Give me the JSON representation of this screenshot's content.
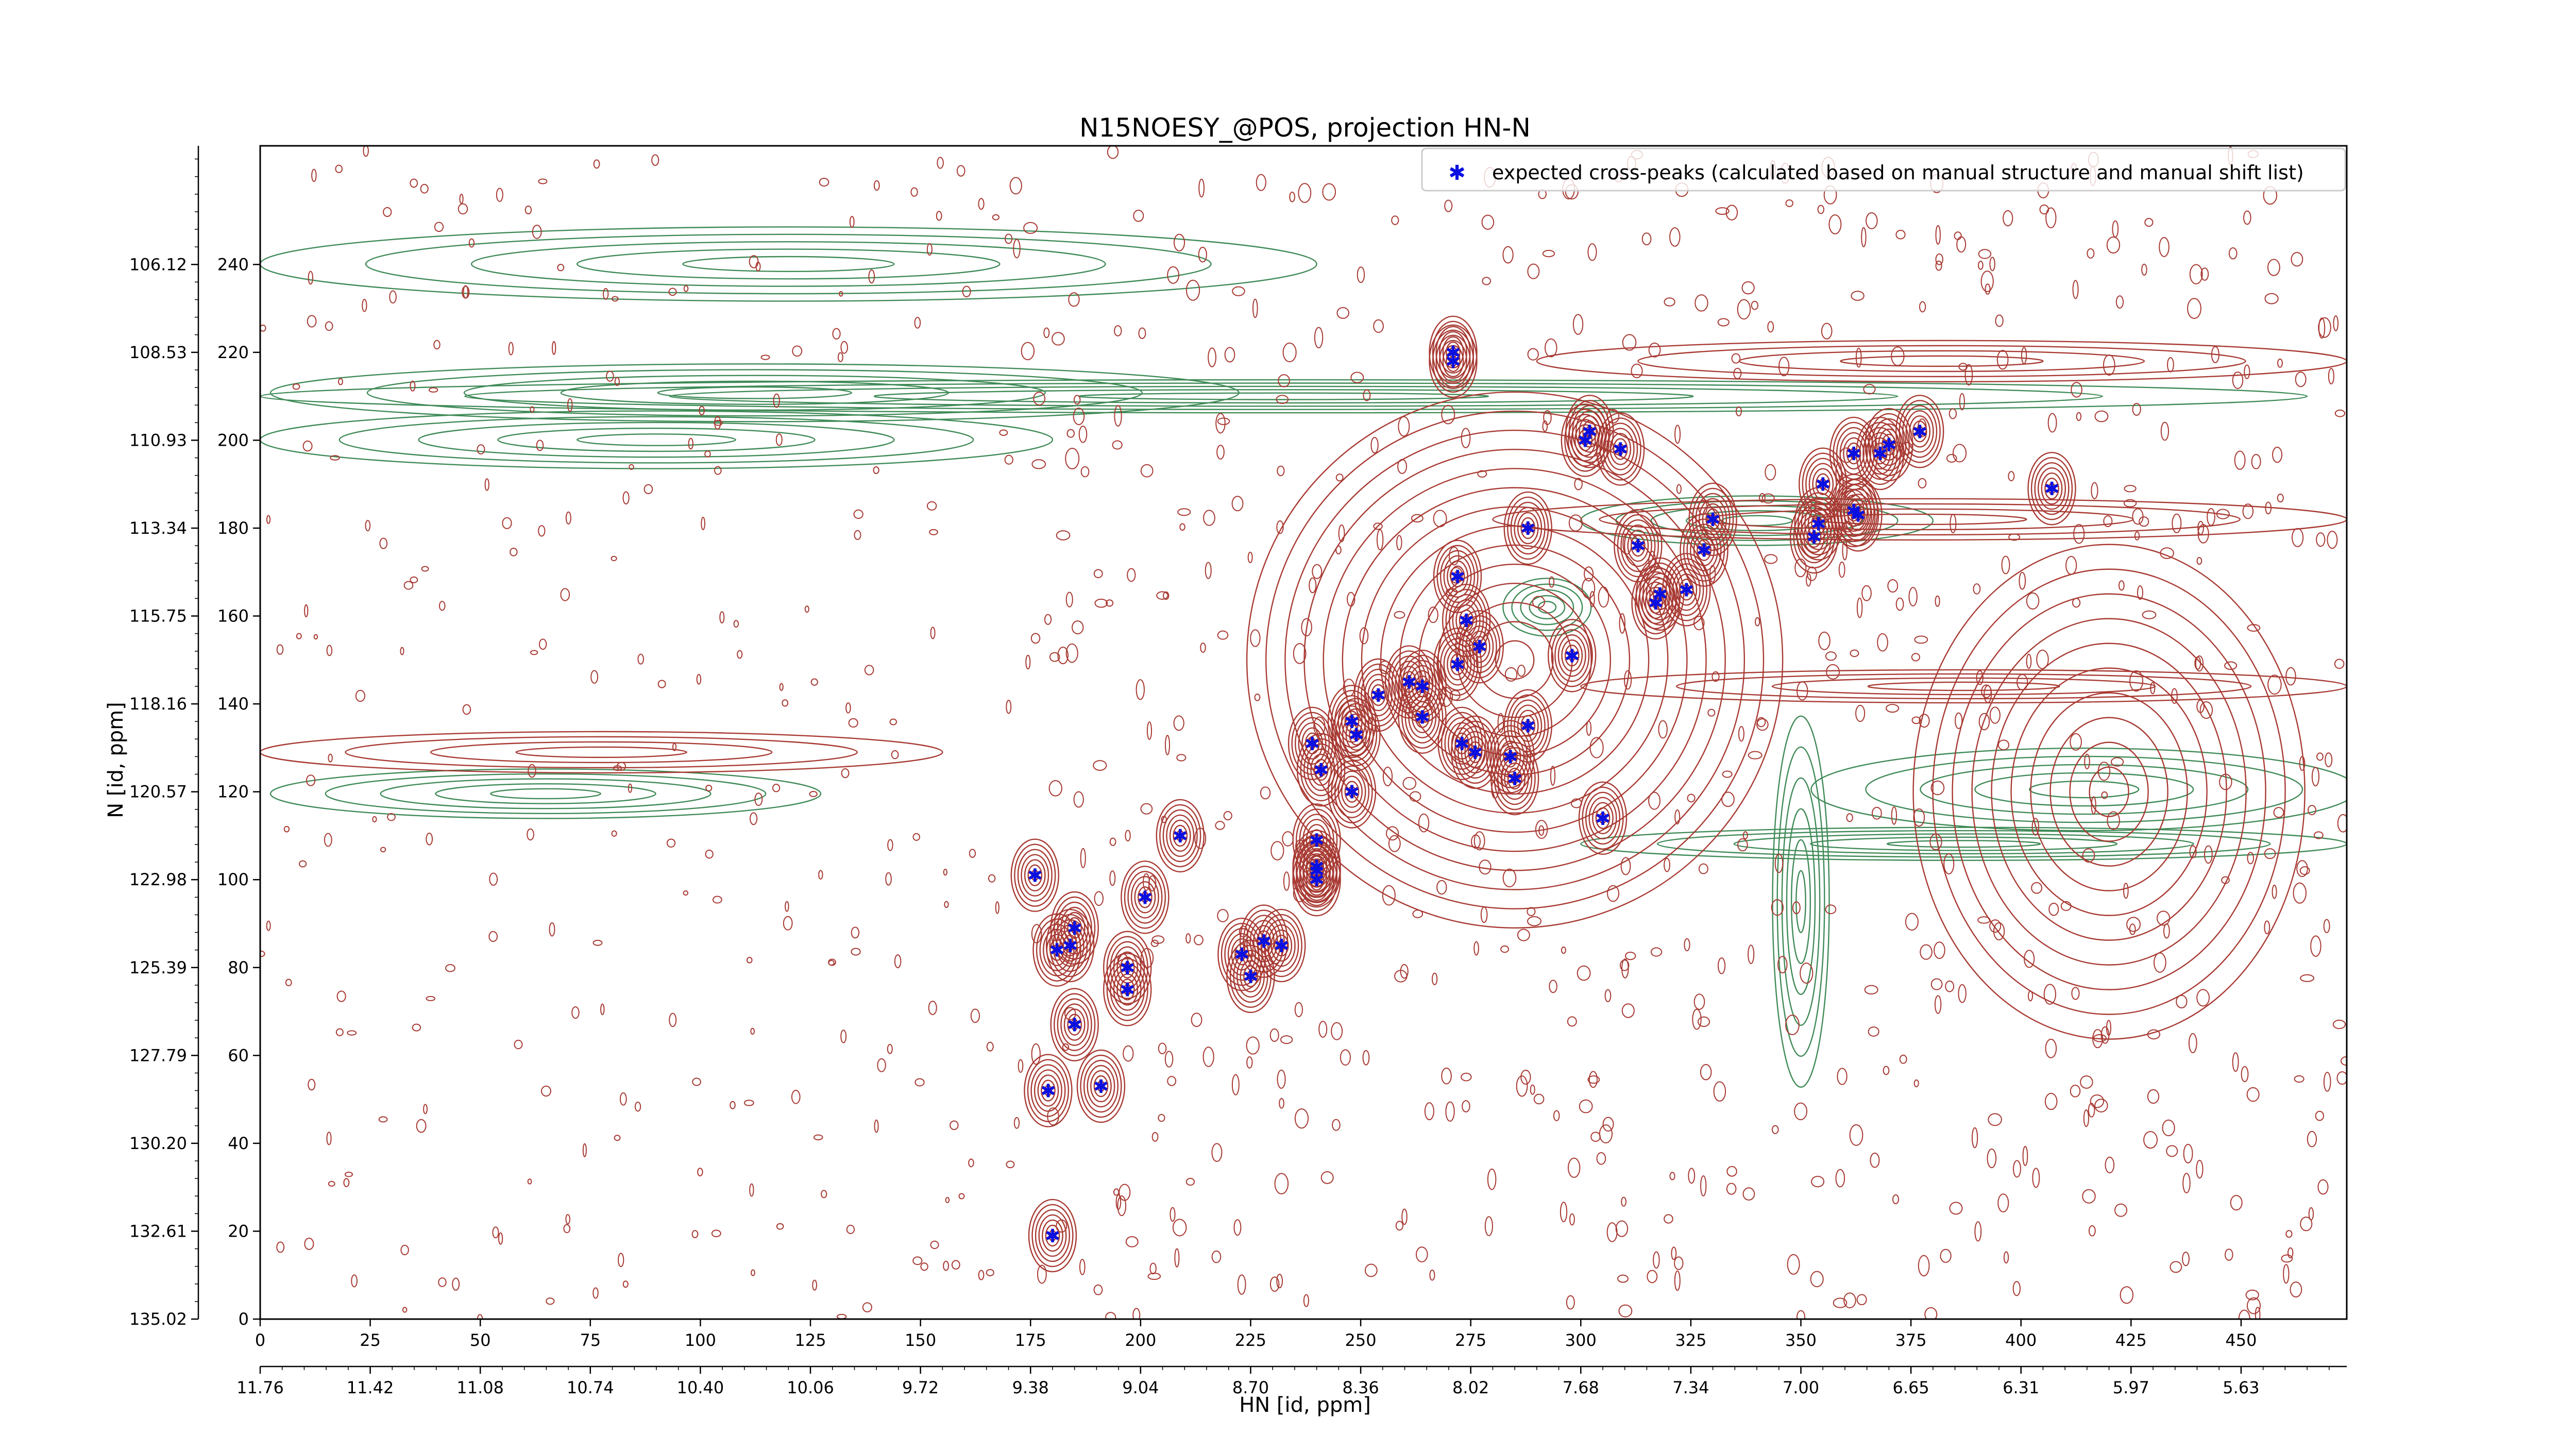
{
  "colors": {
    "positive_contour": "#a83a33",
    "negative_contour": "#3f8a57",
    "peak_marker": "#0a10e0",
    "legend_border": "#cccccc"
  },
  "chart_data": {
    "type": "scatter",
    "title": "N15NOESY_@POS, projection HN-N",
    "xlabel": "HN [id, ppm]",
    "ylabel": "N [id, ppm]",
    "legend": {
      "placement": "top-right",
      "entries": [
        "expected cross-peaks (calculated based on manual structure and manual shift list)"
      ]
    },
    "grid": false,
    "x_index_range": [
      0,
      474
    ],
    "y_index_range": [
      0,
      267
    ],
    "x_index_ticks": [
      0,
      25,
      50,
      75,
      100,
      125,
      150,
      175,
      200,
      225,
      250,
      275,
      300,
      325,
      350,
      375,
      400,
      425,
      450
    ],
    "y_index_ticks": [
      0,
      20,
      40,
      60,
      80,
      100,
      120,
      140,
      160,
      180,
      200,
      220,
      240
    ],
    "x_ppm_tick_labels": [
      "11.76",
      "11.42",
      "11.08",
      "10.74",
      "10.40",
      "10.06",
      "9.72",
      "9.38",
      "9.04",
      "8.70",
      "8.36",
      "8.02",
      "7.68",
      "7.34",
      "7.00",
      "6.65",
      "6.31",
      "5.97",
      "5.63"
    ],
    "x_ppm_tick_positions": [
      0,
      25,
      50,
      75,
      100,
      125,
      150,
      175,
      200,
      225,
      250,
      275,
      300,
      325,
      350,
      375,
      400,
      425,
      450
    ],
    "y_ppm_tick_labels": [
      "135.02",
      "132.61",
      "130.20",
      "127.79",
      "125.39",
      "122.98",
      "120.57",
      "118.16",
      "115.75",
      "113.34",
      "110.93",
      "108.53",
      "106.12"
    ],
    "y_ppm_tick_positions": [
      0,
      20,
      40,
      60,
      80,
      100,
      120,
      140,
      160,
      180,
      200,
      220,
      240
    ],
    "series": [
      {
        "name": "expected cross-peaks (calculated based on manual structure and manual shift list)",
        "x": [
          180,
          179,
          191,
          185,
          197,
          181,
          197,
          185,
          184,
          176,
          201,
          209,
          225,
          223,
          228,
          232,
          240,
          240,
          240,
          240,
          241,
          239,
          249,
          248,
          248,
          254,
          264,
          261,
          264,
          276,
          273,
          272,
          277,
          274,
          272,
          285,
          284,
          288,
          298,
          288,
          301,
          309,
          302,
          317,
          313,
          318,
          324,
          330,
          328,
          354,
          355,
          353,
          362,
          363,
          362,
          368,
          377,
          370,
          407,
          271,
          271,
          305
        ],
        "y": [
          19,
          52,
          53,
          67,
          75,
          84,
          80,
          89,
          85,
          101,
          96,
          110,
          78,
          83,
          86,
          85,
          100,
          102,
          109,
          103,
          125,
          131,
          133,
          136,
          120,
          142,
          144,
          145,
          137,
          129,
          131,
          149,
          153,
          159,
          169,
          123,
          128,
          135,
          151,
          180,
          200,
          198,
          202,
          163,
          176,
          165,
          166,
          182,
          175,
          181,
          190,
          178,
          197,
          183,
          184,
          197,
          202,
          199,
          189,
          218,
          220,
          114
        ]
      }
    ]
  }
}
